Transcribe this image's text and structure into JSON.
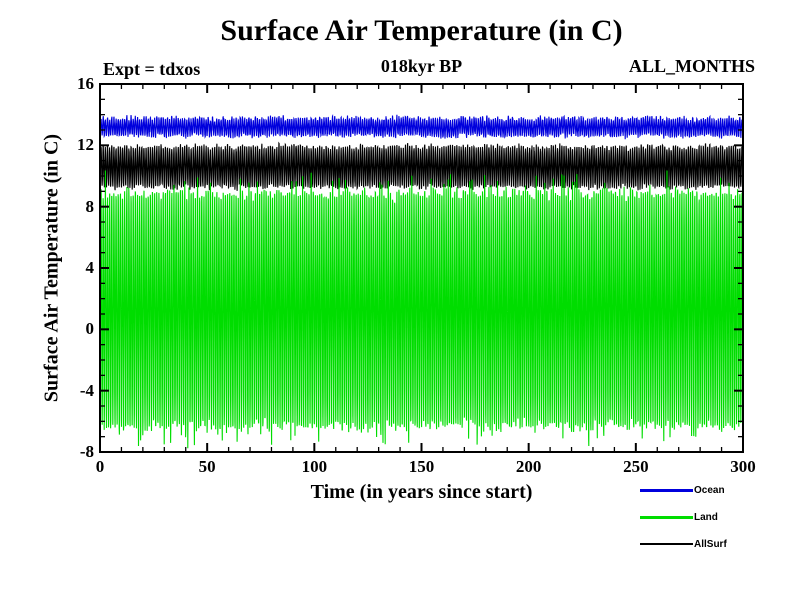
{
  "chart_data": {
    "type": "line",
    "title": "Surface Air Temperature (in C)",
    "annotations": {
      "left": "Expt = tdxos",
      "center": "018kyr BP",
      "right": "ALL_MONTHS"
    },
    "xlabel": "Time (in years since start)",
    "ylabel": "Surface Air Temperature (in C)",
    "xlim": [
      0,
      300
    ],
    "ylim": [
      -8,
      16
    ],
    "x_major_ticks": [
      0,
      50,
      100,
      150,
      200,
      250,
      300
    ],
    "x_tick_labels": [
      "0",
      "50",
      "100",
      "150",
      "200",
      "250",
      "300"
    ],
    "x_minor_step": 10,
    "y_major_ticks": [
      16,
      12,
      8,
      4,
      0,
      -4,
      -8
    ],
    "y_tick_labels": [
      "16",
      "12",
      "8",
      "4",
      "0",
      "-4",
      "-8"
    ],
    "y_minor_step": 1,
    "grid": false,
    "x_unit": "years",
    "samples_per_year": 12,
    "series": [
      {
        "name": "Ocean",
        "color": "#0000dd",
        "mean": 13.2,
        "seasonal_amplitude": 0.55,
        "noise": 0.18,
        "interannual": 0.12,
        "spike": 0,
        "band": [
          12.5,
          13.9
        ]
      },
      {
        "name": "Land",
        "color": "#00dd00",
        "mean": 1.3,
        "seasonal_amplitude": 7.7,
        "noise": 0.45,
        "interannual": 0.25,
        "spike": 1.3,
        "band": [
          -6.4,
          9.0
        ]
      },
      {
        "name": "AllSurf",
        "color": "#000000",
        "mean": 10.6,
        "seasonal_amplitude": 1.3,
        "noise": 0.22,
        "interannual": 0.12,
        "spike": 0,
        "band": [
          9.3,
          11.9
        ]
      }
    ],
    "draw_order": [
      "AllSurf",
      "Land",
      "Ocean"
    ],
    "legend": {
      "position": "bottom-right",
      "items": [
        {
          "label": "Ocean",
          "color": "#0000dd"
        },
        {
          "label": "Land",
          "color": "#00dd00"
        },
        {
          "label": "AllSurf",
          "color": "#000000"
        }
      ]
    }
  }
}
